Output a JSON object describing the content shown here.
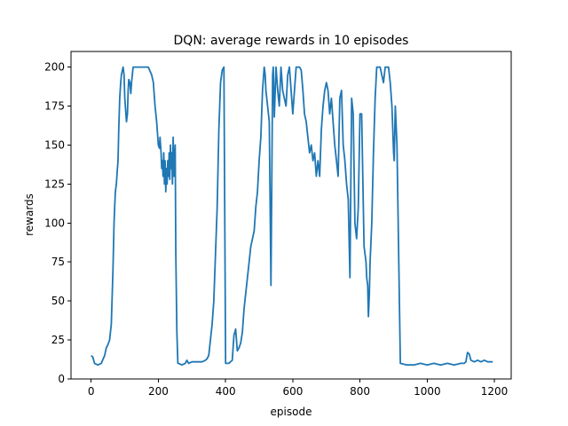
{
  "chart_data": {
    "type": "line",
    "title": "DQN: average rewards in 10 episodes",
    "xlabel": "episode",
    "ylabel": "rewards",
    "xlim": [
      -60,
      1250
    ],
    "ylim": [
      0,
      210
    ],
    "xticks": [
      0,
      200,
      400,
      600,
      800,
      1000,
      1200
    ],
    "yticks": [
      0,
      25,
      50,
      75,
      100,
      125,
      150,
      175,
      200
    ],
    "grid": false,
    "color": "#1f77b4",
    "series": [
      {
        "x": [
          0,
          5,
          10,
          20,
          30,
          40,
          45,
          50,
          55,
          60,
          65,
          68,
          70,
          72,
          75,
          78,
          80,
          82,
          85,
          88,
          90,
          95,
          98,
          100,
          105,
          108,
          110,
          112,
          115,
          118,
          120,
          125,
          130,
          135,
          140,
          150,
          160,
          170,
          180,
          185,
          190,
          195,
          200,
          203,
          205,
          208,
          210,
          212,
          214,
          216,
          218,
          220,
          222,
          224,
          226,
          228,
          230,
          232,
          234,
          236,
          238,
          240,
          242,
          244,
          246,
          248,
          250,
          252,
          255,
          258,
          260,
          270,
          280,
          285,
          290,
          300,
          320,
          330,
          340,
          345,
          350,
          355,
          360,
          365,
          370,
          375,
          380,
          385,
          390,
          395,
          400,
          403,
          405,
          410,
          420,
          425,
          430,
          435,
          440,
          445,
          450,
          455,
          460,
          465,
          470,
          475,
          480,
          485,
          490,
          495,
          500,
          505,
          510,
          515,
          518,
          520,
          525,
          530,
          535,
          540,
          542,
          545,
          550,
          555,
          560,
          565,
          570,
          575,
          580,
          585,
          590,
          595,
          600,
          610,
          620,
          625,
          630,
          635,
          640,
          645,
          650,
          655,
          660,
          665,
          670,
          675,
          680,
          685,
          690,
          695,
          700,
          705,
          710,
          715,
          720,
          725,
          730,
          735,
          740,
          745,
          750,
          755,
          760,
          765,
          770,
          775,
          780,
          785,
          790,
          795,
          800,
          805,
          810,
          812,
          815,
          818,
          820,
          823,
          825,
          828,
          830,
          835,
          840,
          845,
          850,
          855,
          860,
          865,
          870,
          875,
          880,
          885,
          890,
          895,
          900,
          902,
          905,
          910,
          915,
          920,
          940,
          960,
          980,
          1000,
          1020,
          1040,
          1060,
          1080,
          1100,
          1110,
          1115,
          1120,
          1125,
          1130,
          1140,
          1150,
          1160,
          1170,
          1180,
          1195
        ],
        "y": [
          15,
          14,
          10,
          9,
          10,
          15,
          20,
          22,
          25,
          35,
          70,
          100,
          110,
          120,
          125,
          135,
          140,
          160,
          180,
          190,
          195,
          200,
          195,
          180,
          165,
          170,
          185,
          192,
          190,
          183,
          190,
          200,
          200,
          200,
          200,
          200,
          200,
          200,
          195,
          190,
          175,
          165,
          150,
          148,
          155,
          145,
          135,
          140,
          130,
          145,
          125,
          140,
          120,
          135,
          125,
          140,
          130,
          145,
          128,
          150,
          135,
          145,
          125,
          155,
          130,
          140,
          150,
          80,
          30,
          10,
          10,
          9,
          10,
          12,
          10,
          11,
          11,
          11,
          12,
          13,
          15,
          25,
          35,
          50,
          80,
          110,
          160,
          190,
          198,
          200,
          10,
          10,
          10,
          10,
          12,
          28,
          32,
          18,
          20,
          23,
          30,
          45,
          55,
          65,
          75,
          85,
          90,
          95,
          110,
          120,
          140,
          155,
          185,
          200,
          195,
          185,
          175,
          165,
          60,
          195,
          200,
          168,
          200,
          185,
          175,
          200,
          185,
          180,
          175,
          195,
          200,
          185,
          170,
          200,
          200,
          198,
          185,
          170,
          165,
          155,
          145,
          150,
          140,
          145,
          130,
          140,
          130,
          160,
          175,
          185,
          190,
          185,
          170,
          180,
          165,
          150,
          140,
          130,
          180,
          185,
          150,
          140,
          125,
          115,
          65,
          180,
          170,
          100,
          90,
          110,
          170,
          170,
          110,
          85,
          80,
          75,
          65,
          60,
          40,
          55,
          75,
          100,
          145,
          180,
          200,
          200,
          200,
          195,
          190,
          200,
          200,
          200,
          190,
          175,
          145,
          140,
          175,
          150,
          80,
          10,
          9,
          9,
          10,
          9,
          10,
          9,
          10,
          9,
          10,
          10,
          11,
          17,
          16,
          12,
          11,
          12,
          11,
          12,
          11,
          11
        ]
      }
    ]
  }
}
